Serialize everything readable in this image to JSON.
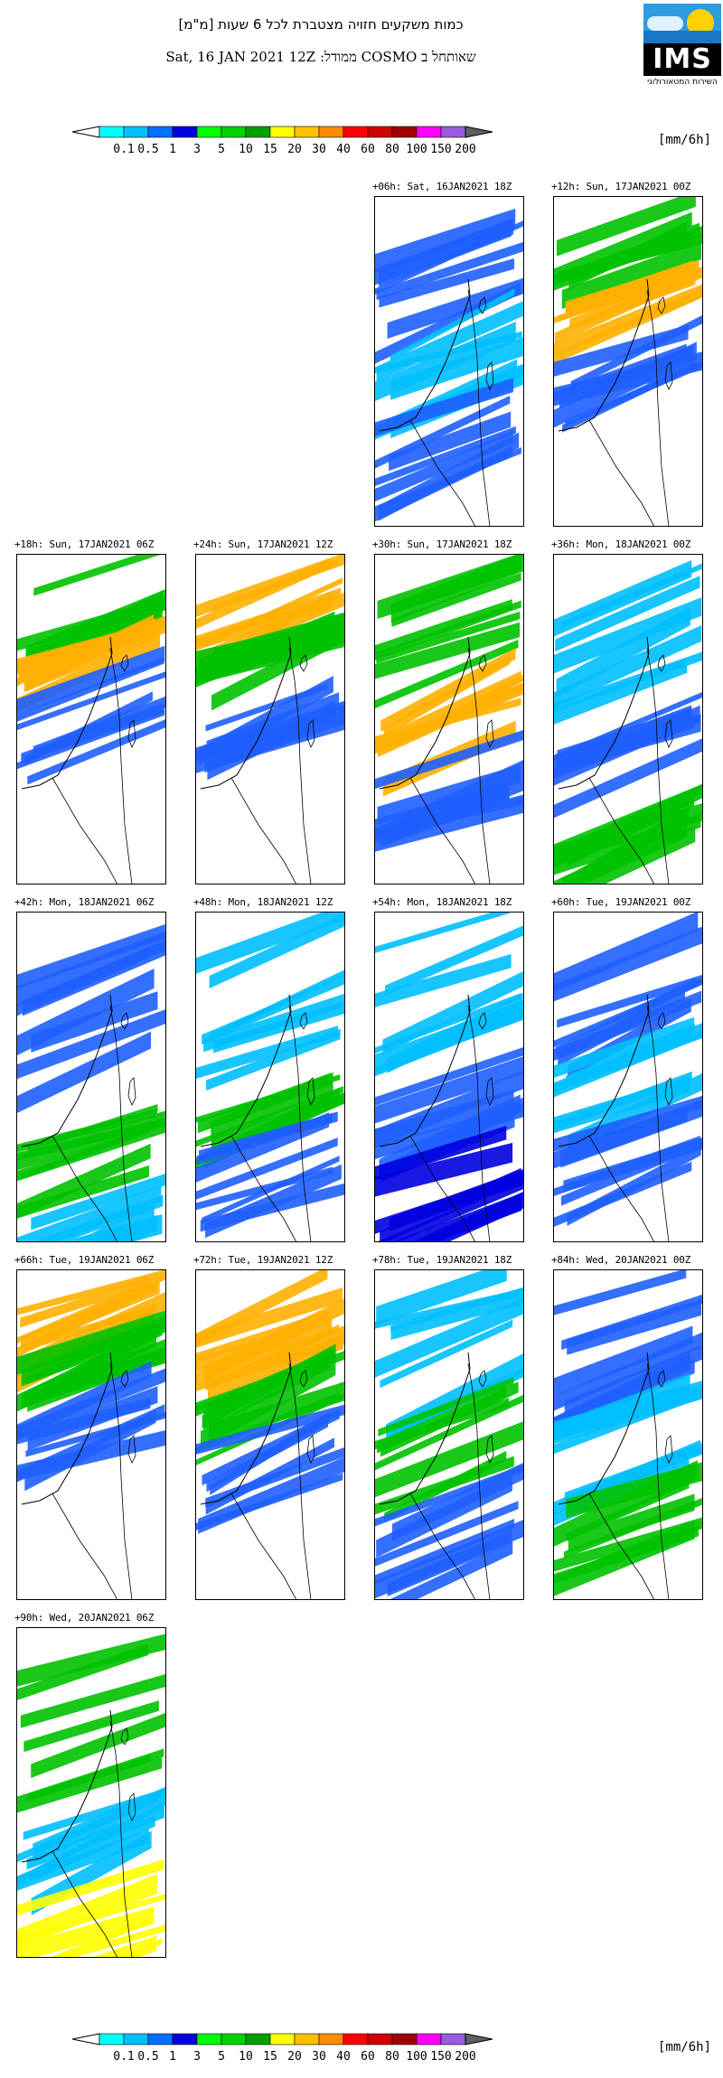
{
  "header": {
    "title_hebrew": "כמות משקעים חזויה מצטברת לכל 6 שעות [מ\"מ]",
    "subtitle": "Sat, 16 JAN 2021 12Z   :ממודל COSMO שאותחל ב"
  },
  "logo": {
    "text": "IMS",
    "subtitle_hebrew": "השירות המטאורולוגי"
  },
  "colorbar": {
    "units": "[mm/6h]",
    "tick_labels": [
      "0.1",
      "0.5",
      "1",
      "3",
      "5",
      "10",
      "15",
      "20",
      "30",
      "40",
      "60",
      "80",
      "100",
      "150",
      "200"
    ],
    "colors": [
      "#00ffff",
      "#00bfff",
      "#0070ff",
      "#0000e0",
      "#00ff00",
      "#00d200",
      "#00a000",
      "#ffff00",
      "#ffc000",
      "#ff8c00",
      "#ff0000",
      "#d00000",
      "#a00000",
      "#ff00ff",
      "#9b5be0"
    ],
    "low_end_color": "#ffffff",
    "high_end_color": "#606060"
  },
  "map_colors": {
    "dry": "#ffffff",
    "coast": "#000000",
    "cyan": "#00ffff",
    "sky": "#00bfff",
    "blue": "#1f5fff",
    "navy": "#0000e0",
    "lightgreen": "#33ee33",
    "green": "#00c200",
    "darkgreen": "#008c1e",
    "yellow": "#ffff00",
    "orange": "#ffb000",
    "deeporange": "#ff7a00",
    "red": "#ff2000"
  },
  "panels": [
    {
      "label": "+06h: Sat, 16JAN2021 18Z",
      "rain": [
        [
          0.0,
          "blue"
        ],
        [
          0.3,
          "sky"
        ],
        [
          0.55,
          "blue"
        ]
      ]
    },
    {
      "label": "+12h: Sun, 17JAN2021 00Z",
      "rain": [
        [
          0.0,
          "green"
        ],
        [
          0.22,
          "orange"
        ],
        [
          0.3,
          "blue"
        ]
      ]
    },
    {
      "label": "+18h: Sun, 17JAN2021 06Z",
      "rain": [
        [
          0.0,
          "green"
        ],
        [
          0.2,
          "orange"
        ],
        [
          0.28,
          "blue"
        ]
      ]
    },
    {
      "label": "+24h: Sun, 17JAN2021 12Z",
      "rain": [
        [
          0.0,
          "orange"
        ],
        [
          0.18,
          "green"
        ],
        [
          0.27,
          "blue"
        ]
      ]
    },
    {
      "label": "+30h: Sun, 17JAN2021 18Z",
      "rain": [
        [
          0.0,
          "green"
        ],
        [
          0.3,
          "orange"
        ],
        [
          0.55,
          "blue"
        ]
      ]
    },
    {
      "label": "+36h: Mon, 18JAN2021 00Z",
      "rain": [
        [
          0.0,
          "sky"
        ],
        [
          0.4,
          "blue"
        ],
        [
          0.6,
          "green"
        ]
      ]
    },
    {
      "label": "+42h: Mon, 18JAN2021 06Z",
      "rain": [
        [
          0.0,
          "blue"
        ],
        [
          0.48,
          "green"
        ],
        [
          0.8,
          "sky"
        ]
      ]
    },
    {
      "label": "+48h: Mon, 18JAN2021 12Z",
      "rain": [
        [
          0.0,
          "sky"
        ],
        [
          0.45,
          "green"
        ],
        [
          0.62,
          "blue"
        ]
      ]
    },
    {
      "label": "+54h: Mon, 18JAN2021 18Z",
      "rain": [
        [
          0.0,
          "sky"
        ],
        [
          0.35,
          "blue"
        ],
        [
          0.65,
          "navy"
        ]
      ]
    },
    {
      "label": "+60h: Tue, 19JAN2021 00Z",
      "rain": [
        [
          0.0,
          "blue"
        ],
        [
          0.3,
          "sky"
        ],
        [
          0.55,
          "blue"
        ]
      ]
    },
    {
      "label": "+66h: Tue, 19JAN2021 06Z",
      "rain": [
        [
          0.0,
          "orange"
        ],
        [
          0.15,
          "green"
        ],
        [
          0.27,
          "blue"
        ]
      ]
    },
    {
      "label": "+72h: Tue, 19JAN2021 12Z",
      "rain": [
        [
          0.0,
          "orange"
        ],
        [
          0.25,
          "green"
        ],
        [
          0.4,
          "blue"
        ]
      ]
    },
    {
      "label": "+78h: Tue, 19JAN2021 18Z",
      "rain": [
        [
          0.0,
          "sky"
        ],
        [
          0.35,
          "green"
        ],
        [
          0.6,
          "blue"
        ]
      ]
    },
    {
      "label": "+84h: Wed, 20JAN2021 00Z",
      "rain": [
        [
          0.0,
          "blue"
        ],
        [
          0.3,
          "sky"
        ],
        [
          0.6,
          "green"
        ]
      ]
    },
    {
      "label": "+90h: Wed, 20JAN2021 06Z",
      "rain": [
        [
          0.0,
          "green"
        ],
        [
          0.45,
          "sky"
        ],
        [
          0.72,
          "yellow"
        ]
      ]
    }
  ]
}
